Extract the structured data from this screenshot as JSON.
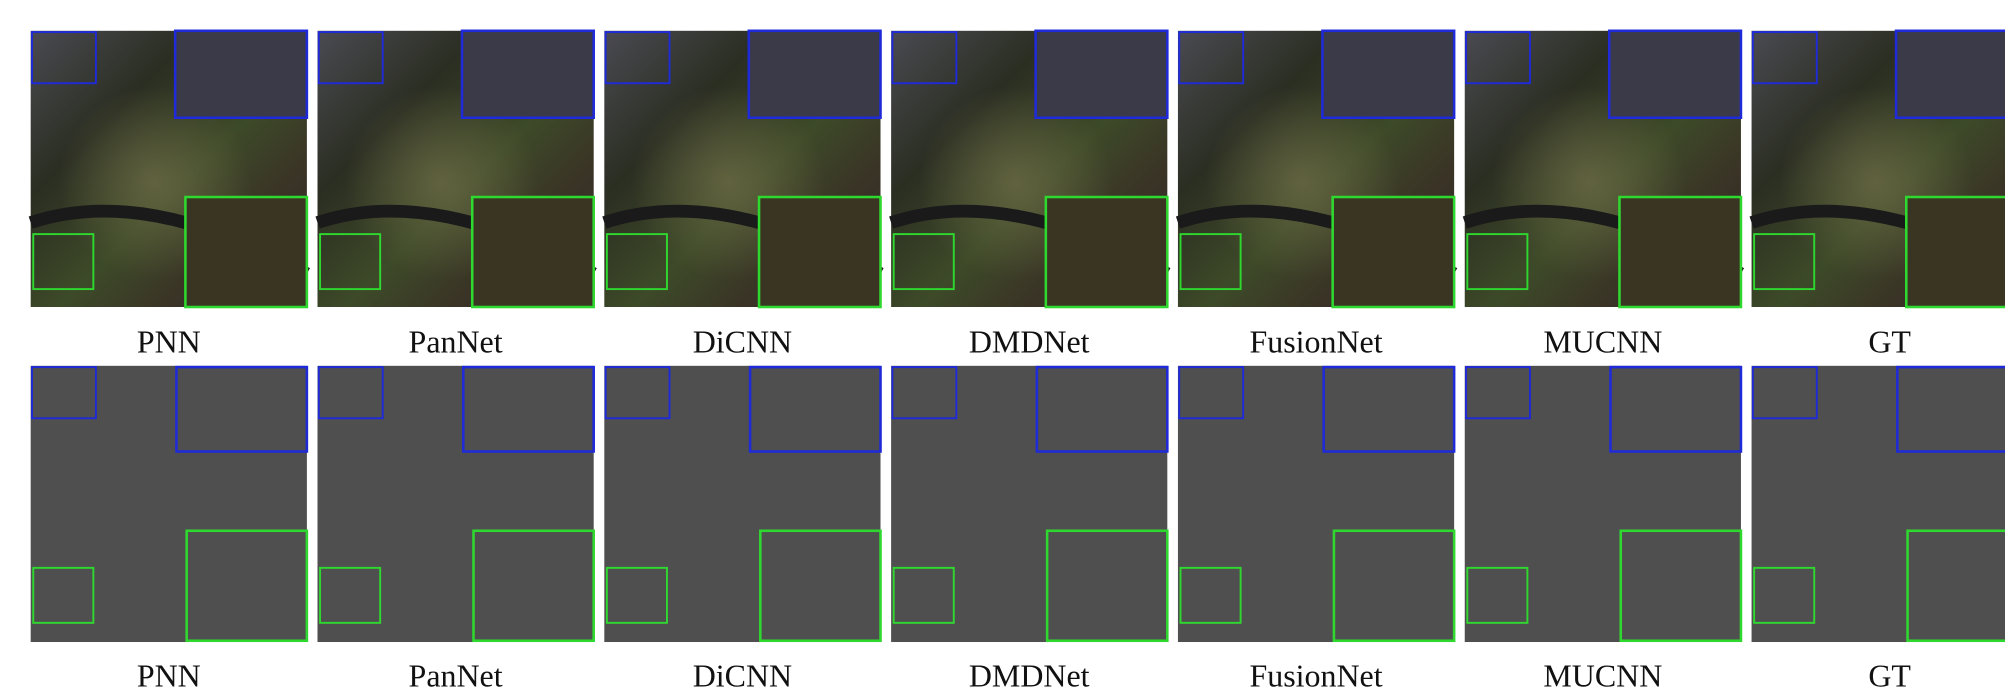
{
  "figure": {
    "rows": [
      {
        "labels": [
          "PNN",
          "PanNet",
          "DiCNN",
          "DMDNet",
          "FusionNet",
          "MUCNN",
          "GT"
        ]
      },
      {
        "labels": [
          "PNN",
          "PanNet",
          "DiCNN",
          "DMDNet",
          "FusionNet",
          "MUCNN",
          "GT"
        ]
      }
    ]
  }
}
